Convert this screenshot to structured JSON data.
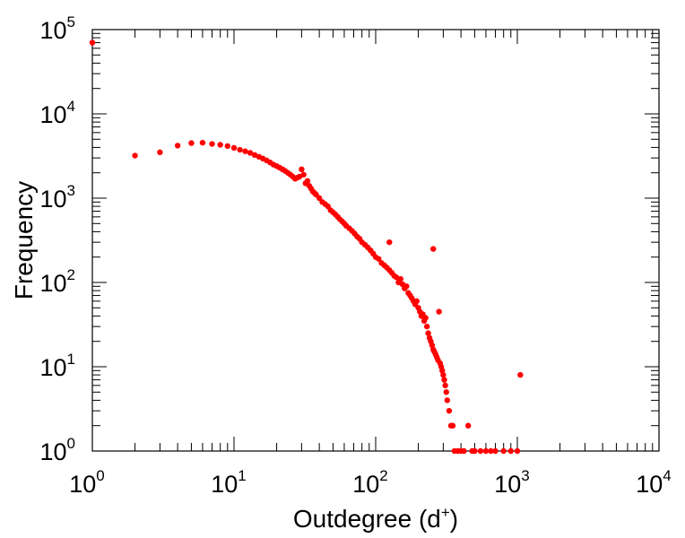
{
  "chart_data": {
    "type": "scatter",
    "xlabel": "Outdegree (d",
    "xlabel_sup": "+",
    "xlabel_close": ")",
    "ylabel": "Frequency",
    "x_scale": "log",
    "y_scale": "log",
    "xlim": [
      1,
      10000
    ],
    "ylim": [
      1,
      100000
    ],
    "grid": false,
    "marker_color": "#ff0000",
    "x_ticks": [
      {
        "base": "10",
        "exp": "0",
        "value": 1
      },
      {
        "base": "10",
        "exp": "1",
        "value": 10
      },
      {
        "base": "10",
        "exp": "2",
        "value": 100
      },
      {
        "base": "10",
        "exp": "3",
        "value": 1000
      },
      {
        "base": "10",
        "exp": "4",
        "value": 10000
      }
    ],
    "y_ticks": [
      {
        "base": "10",
        "exp": "0",
        "value": 1
      },
      {
        "base": "10",
        "exp": "1",
        "value": 10
      },
      {
        "base": "10",
        "exp": "2",
        "value": 100
      },
      {
        "base": "10",
        "exp": "3",
        "value": 1000
      },
      {
        "base": "10",
        "exp": "4",
        "value": 10000
      },
      {
        "base": "10",
        "exp": "5",
        "value": 100000
      }
    ],
    "points": [
      [
        1,
        70000
      ],
      [
        2,
        3200
      ],
      [
        3,
        3500
      ],
      [
        4,
        4200
      ],
      [
        5,
        4500
      ],
      [
        6,
        4550
      ],
      [
        7,
        4400
      ],
      [
        8,
        4300
      ],
      [
        9,
        4150
      ],
      [
        10,
        3950
      ],
      [
        11,
        3750
      ],
      [
        12,
        3600
      ],
      [
        13,
        3450
      ],
      [
        14,
        3250
      ],
      [
        15,
        3100
      ],
      [
        16,
        2950
      ],
      [
        17,
        2800
      ],
      [
        18,
        2650
      ],
      [
        19,
        2500
      ],
      [
        20,
        2400
      ],
      [
        21,
        2300
      ],
      [
        22,
        2200
      ],
      [
        23,
        2100
      ],
      [
        24,
        2000
      ],
      [
        25,
        1900
      ],
      [
        26,
        1800
      ],
      [
        27,
        1700
      ],
      [
        28,
        1750
      ],
      [
        29,
        1800
      ],
      [
        30,
        2200
      ],
      [
        31,
        1900
      ],
      [
        32,
        1500
      ],
      [
        33,
        1600
      ],
      [
        34,
        1400
      ],
      [
        35,
        1300
      ],
      [
        36,
        1200
      ],
      [
        37,
        1150
      ],
      [
        38,
        1100
      ],
      [
        40,
        1000
      ],
      [
        42,
        900
      ],
      [
        44,
        850
      ],
      [
        46,
        800
      ],
      [
        48,
        720
      ],
      [
        50,
        680
      ],
      [
        52,
        640
      ],
      [
        54,
        600
      ],
      [
        56,
        560
      ],
      [
        58,
        530
      ],
      [
        60,
        500
      ],
      [
        62,
        470
      ],
      [
        65,
        440
      ],
      [
        68,
        410
      ],
      [
        71,
        380
      ],
      [
        74,
        350
      ],
      [
        77,
        330
      ],
      [
        80,
        300
      ],
      [
        84,
        280
      ],
      [
        88,
        260
      ],
      [
        92,
        240
      ],
      [
        96,
        220
      ],
      [
        100,
        200
      ],
      [
        105,
        190
      ],
      [
        110,
        170
      ],
      [
        115,
        160
      ],
      [
        120,
        150
      ],
      [
        125,
        300
      ],
      [
        125,
        140
      ],
      [
        130,
        130
      ],
      [
        135,
        120
      ],
      [
        140,
        115
      ],
      [
        145,
        100
      ],
      [
        150,
        110
      ],
      [
        155,
        95
      ],
      [
        160,
        85
      ],
      [
        165,
        90
      ],
      [
        170,
        75
      ],
      [
        175,
        70
      ],
      [
        180,
        65
      ],
      [
        185,
        60
      ],
      [
        190,
        55
      ],
      [
        195,
        60
      ],
      [
        200,
        50
      ],
      [
        205,
        45
      ],
      [
        210,
        40
      ],
      [
        215,
        42
      ],
      [
        220,
        35
      ],
      [
        225,
        38
      ],
      [
        230,
        30
      ],
      [
        235,
        25
      ],
      [
        240,
        22
      ],
      [
        245,
        20
      ],
      [
        250,
        18
      ],
      [
        255,
        250
      ],
      [
        255,
        16
      ],
      [
        260,
        15
      ],
      [
        265,
        14
      ],
      [
        270,
        13
      ],
      [
        275,
        12
      ],
      [
        280,
        45
      ],
      [
        285,
        11
      ],
      [
        290,
        10
      ],
      [
        295,
        9
      ],
      [
        300,
        8
      ],
      [
        305,
        7
      ],
      [
        310,
        6
      ],
      [
        315,
        5
      ],
      [
        320,
        4
      ],
      [
        330,
        3
      ],
      [
        340,
        2
      ],
      [
        350,
        2
      ],
      [
        360,
        1
      ],
      [
        380,
        1
      ],
      [
        400,
        1
      ],
      [
        420,
        1
      ],
      [
        450,
        2
      ],
      [
        480,
        1
      ],
      [
        500,
        1
      ],
      [
        550,
        1
      ],
      [
        600,
        1
      ],
      [
        650,
        1
      ],
      [
        700,
        1
      ],
      [
        800,
        1
      ],
      [
        900,
        1
      ],
      [
        1000,
        1
      ],
      [
        1050,
        8
      ]
    ]
  }
}
